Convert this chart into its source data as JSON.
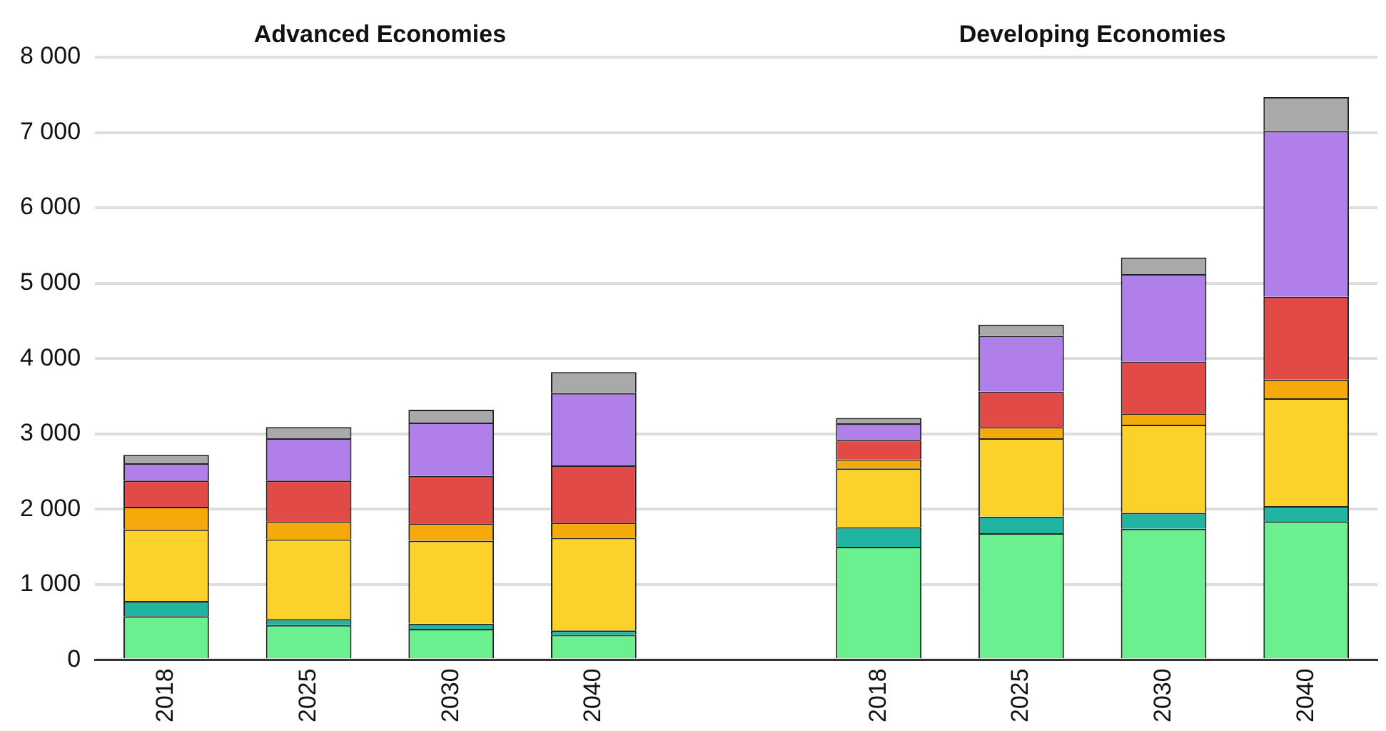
{
  "chart_data": {
    "type": "bar",
    "stacked": true,
    "categories": [
      "2018",
      "2025",
      "2030",
      "2040",
      null,
      "2018",
      "2025",
      "2030",
      "2040"
    ],
    "series": [
      {
        "color": "#6af08f",
        "values": [
          580,
          460,
          410,
          330,
          null,
          1500,
          1680,
          1740,
          1840
        ]
      },
      {
        "color": "#1fb5a0",
        "values": [
          200,
          80,
          70,
          60,
          null,
          260,
          220,
          210,
          200
        ]
      },
      {
        "color": "#fcd22a",
        "values": [
          950,
          1060,
          1100,
          1230,
          null,
          780,
          1040,
          1170,
          1430
        ]
      },
      {
        "color": "#f5a90a",
        "values": [
          300,
          240,
          230,
          200,
          null,
          120,
          150,
          150,
          250
        ]
      },
      {
        "color": "#e24a48",
        "values": [
          350,
          540,
          630,
          760,
          null,
          260,
          470,
          690,
          1100
        ]
      },
      {
        "color": "#b07fe9",
        "values": [
          230,
          560,
          710,
          960,
          null,
          220,
          740,
          1160,
          2200
        ]
      },
      {
        "color": "#a9a9a9",
        "values": [
          110,
          150,
          170,
          280,
          null,
          70,
          150,
          220,
          450
        ]
      }
    ],
    "ylim": [
      0,
      8000
    ],
    "yticks": [
      0,
      {
        "value": 1000,
        "label": "1 000"
      },
      {
        "value": 2000,
        "label": "2 000"
      },
      {
        "value": 3000,
        "label": "3 000"
      },
      {
        "value": 4000,
        "label": "4 000"
      },
      {
        "value": 5000,
        "label": "5 000"
      },
      {
        "value": 6000,
        "label": "6 000"
      },
      {
        "value": 7000,
        "label": "7 000"
      },
      {
        "value": 8000,
        "label": "8 000"
      }
    ],
    "grid": "y",
    "annotations": [
      "Advanced Economies",
      "Developing Economies"
    ]
  }
}
